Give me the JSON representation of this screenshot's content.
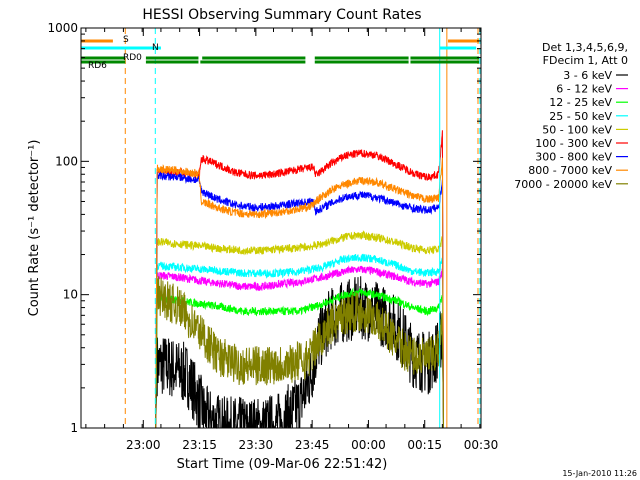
{
  "chart_data": {
    "type": "line",
    "title": "HESSI Observing Summary Count Rates",
    "xlabel": "Start Time (09-Mar-06 22:51:42)",
    "ylabel": "Count Rate (s⁻¹ detector⁻¹)",
    "y_scale": "log",
    "ylim": [
      1,
      1000
    ],
    "xlim_min": [
      -8.3,
      98.3
    ],
    "x_ticks": [
      {
        "t": 8.3,
        "label": "23:00"
      },
      {
        "t": 23.3,
        "label": "23:15"
      },
      {
        "t": 38.3,
        "label": "23:30"
      },
      {
        "t": 53.3,
        "label": "23:45"
      },
      {
        "t": 68.3,
        "label": "00:00"
      },
      {
        "t": 83.3,
        "label": "00:15"
      },
      {
        "t": 98.3,
        "label": "00:30"
      }
    ],
    "y_ticks": [
      {
        "v": 1,
        "label": "1"
      },
      {
        "v": 10,
        "label": "10"
      },
      {
        "v": 100,
        "label": "100"
      },
      {
        "v": 1000,
        "label": "1000"
      }
    ],
    "legend_header": [
      "Det 1,3,4,5,6,9,",
      "FDecim 1, Att 0"
    ],
    "legend_position": "right",
    "series": [
      {
        "name": "3 - 6 keV",
        "color": "#000000",
        "points": [
          [
            12,
            3.0
          ],
          [
            15,
            2.9
          ],
          [
            20,
            2.5
          ],
          [
            25,
            1.2
          ],
          [
            30,
            1.0
          ],
          [
            35,
            1.0
          ],
          [
            40,
            1.0
          ],
          [
            45,
            1.1
          ],
          [
            50,
            1.5
          ],
          [
            53,
            2.5
          ],
          [
            55,
            4.5
          ],
          [
            58,
            6.5
          ],
          [
            62,
            7.5
          ],
          [
            66,
            8.0
          ],
          [
            70,
            7.5
          ],
          [
            74,
            6.5
          ],
          [
            77,
            5.0
          ],
          [
            80,
            3.5
          ],
          [
            84,
            3.0
          ],
          [
            86,
            3.5
          ],
          [
            88,
            5.0
          ]
        ]
      },
      {
        "name": "6 - 12 keV",
        "color": "#ff00ff",
        "points": [
          [
            12,
            14.0
          ],
          [
            18,
            13.5
          ],
          [
            25,
            12.5
          ],
          [
            30,
            12.0
          ],
          [
            35,
            11.5
          ],
          [
            40,
            11.5
          ],
          [
            45,
            12.0
          ],
          [
            50,
            12.5
          ],
          [
            53,
            13.0
          ],
          [
            56,
            13.5
          ],
          [
            62,
            15.0
          ],
          [
            66,
            15.5
          ],
          [
            70,
            15.0
          ],
          [
            76,
            13.5
          ],
          [
            80,
            12.5
          ],
          [
            84,
            12.0
          ],
          [
            87,
            12.5
          ],
          [
            88,
            15.0
          ]
        ]
      },
      {
        "name": "12 - 25 keV",
        "color": "#00ff00",
        "points": [
          [
            12,
            9.5
          ],
          [
            18,
            9.0
          ],
          [
            24,
            8.5
          ],
          [
            30,
            8.0
          ],
          [
            35,
            7.5
          ],
          [
            40,
            7.5
          ],
          [
            45,
            7.5
          ],
          [
            50,
            7.5
          ],
          [
            53,
            8.0
          ],
          [
            56,
            8.5
          ],
          [
            62,
            10.0
          ],
          [
            66,
            10.5
          ],
          [
            70,
            10.0
          ],
          [
            76,
            9.0
          ],
          [
            80,
            8.0
          ],
          [
            84,
            7.5
          ],
          [
            87,
            8.0
          ],
          [
            88,
            10.0
          ]
        ]
      },
      {
        "name": "25 - 50 keV",
        "color": "#00ffff",
        "points": [
          [
            12,
            16.5
          ],
          [
            18,
            16.0
          ],
          [
            24,
            15.5
          ],
          [
            30,
            15.0
          ],
          [
            35,
            14.5
          ],
          [
            40,
            14.5
          ],
          [
            45,
            14.5
          ],
          [
            50,
            15.0
          ],
          [
            53,
            15.5
          ],
          [
            56,
            16.0
          ],
          [
            62,
            18.5
          ],
          [
            66,
            19.0
          ],
          [
            70,
            18.5
          ],
          [
            76,
            16.5
          ],
          [
            80,
            15.0
          ],
          [
            84,
            14.5
          ],
          [
            87,
            15.0
          ],
          [
            88,
            18.0
          ]
        ]
      },
      {
        "name": "50 - 100 keV",
        "color": "#cccc00",
        "points": [
          [
            12,
            25.0
          ],
          [
            18,
            24.0
          ],
          [
            24,
            23.0
          ],
          [
            30,
            22.0
          ],
          [
            35,
            21.5
          ],
          [
            40,
            21.5
          ],
          [
            45,
            22.0
          ],
          [
            50,
            22.5
          ],
          [
            53,
            23.0
          ],
          [
            56,
            24.0
          ],
          [
            62,
            27.0
          ],
          [
            66,
            28.0
          ],
          [
            70,
            27.0
          ],
          [
            76,
            24.5
          ],
          [
            80,
            22.5
          ],
          [
            84,
            21.5
          ],
          [
            87,
            22.0
          ],
          [
            88,
            26.0
          ]
        ]
      },
      {
        "name": "100 - 300 keV",
        "color": "#ff0000",
        "points": [
          [
            12,
            85.0
          ],
          [
            18,
            83.0
          ],
          [
            23.2,
            78.0
          ],
          [
            23.8,
            105.0
          ],
          [
            28,
            95.0
          ],
          [
            33,
            82.0
          ],
          [
            38,
            78.0
          ],
          [
            43,
            80.0
          ],
          [
            48,
            85.0
          ],
          [
            53,
            90.0
          ],
          [
            53.8,
            90.0
          ],
          [
            54.2,
            78.0
          ],
          [
            58,
            95.0
          ],
          [
            62,
            110.0
          ],
          [
            66,
            115.0
          ],
          [
            70,
            112.0
          ],
          [
            74,
            100.0
          ],
          [
            78,
            88.0
          ],
          [
            81,
            80.0
          ],
          [
            84,
            76.0
          ],
          [
            87,
            80.0
          ],
          [
            88,
            160.0
          ]
        ]
      },
      {
        "name": "300 - 800 keV",
        "color": "#0000ff",
        "points": [
          [
            12,
            78.0
          ],
          [
            18,
            76.0
          ],
          [
            23.2,
            72.0
          ],
          [
            23.8,
            60.0
          ],
          [
            28,
            52.0
          ],
          [
            33,
            47.0
          ],
          [
            38,
            45.0
          ],
          [
            43,
            46.0
          ],
          [
            48,
            48.0
          ],
          [
            53,
            50.0
          ],
          [
            53.8,
            50.0
          ],
          [
            54.2,
            42.0
          ],
          [
            58,
            48.0
          ],
          [
            62,
            54.0
          ],
          [
            66,
            56.0
          ],
          [
            70,
            54.0
          ],
          [
            74,
            50.0
          ],
          [
            78,
            46.0
          ],
          [
            81,
            44.0
          ],
          [
            84,
            43.0
          ],
          [
            87,
            45.0
          ],
          [
            88,
            70.0
          ]
        ]
      },
      {
        "name": "800 - 7000 keV",
        "color": "#ff8800",
        "points": [
          [
            12,
            88.0
          ],
          [
            18,
            85.0
          ],
          [
            23.2,
            80.0
          ],
          [
            23.8,
            50.0
          ],
          [
            28,
            45.0
          ],
          [
            33,
            41.0
          ],
          [
            38,
            40.0
          ],
          [
            43,
            41.0
          ],
          [
            48,
            43.0
          ],
          [
            53,
            46.0
          ],
          [
            56,
            55.0
          ],
          [
            60,
            64.0
          ],
          [
            64,
            70.0
          ],
          [
            67,
            72.0
          ],
          [
            70,
            70.0
          ],
          [
            74,
            64.0
          ],
          [
            78,
            58.0
          ],
          [
            81,
            54.0
          ],
          [
            84,
            52.0
          ],
          [
            87,
            53.0
          ],
          [
            88,
            100.0
          ]
        ]
      },
      {
        "name": "7000 - 20000 keV",
        "color": "#808000",
        "points": [
          [
            12,
            10.0
          ],
          [
            18,
            8.0
          ],
          [
            24,
            5.0
          ],
          [
            28,
            3.5
          ],
          [
            33,
            3.0
          ],
          [
            38,
            2.9
          ],
          [
            43,
            3.0
          ],
          [
            48,
            3.1
          ],
          [
            52,
            3.3
          ],
          [
            54,
            4.0
          ],
          [
            57,
            5.5
          ],
          [
            61,
            7.0
          ],
          [
            65,
            7.5
          ],
          [
            69,
            7.0
          ],
          [
            73,
            5.5
          ],
          [
            77,
            4.0
          ],
          [
            80,
            3.5
          ],
          [
            84,
            3.3
          ],
          [
            87,
            3.8
          ],
          [
            88,
            6.0
          ]
        ]
      }
    ],
    "flag_bars": [
      {
        "label": "S",
        "color": "#ff8800",
        "spans": [
          [
            -8.3,
            0.2
          ],
          [
            89.5,
            97.8
          ]
        ]
      },
      {
        "label": "N",
        "color": "#00ffff",
        "spans": [
          [
            -8.3,
            13.0
          ],
          [
            87.3,
            97.0
          ]
        ]
      },
      {
        "label": "RD0",
        "color": "#008800",
        "spans": [
          [
            -8.3,
            3.5
          ],
          [
            9.0,
            23.0
          ],
          [
            24.0,
            51.5
          ],
          [
            54.0,
            79.0
          ],
          [
            79.5,
            97.8
          ]
        ]
      },
      {
        "label": "RD6",
        "color": "#008800",
        "spans": [
          [
            -8.3,
            3.5
          ],
          [
            9.0,
            23.0
          ],
          [
            23.5,
            51.5
          ],
          [
            54.0,
            79.0
          ],
          [
            79.5,
            97.8
          ]
        ]
      }
    ],
    "vertical_markers": [
      {
        "t": -8.3,
        "color": "#00ffff",
        "style": "solid"
      },
      {
        "t": 3.5,
        "color": "#ff8800",
        "style": "dashed"
      },
      {
        "t": 11.5,
        "color": "#00ffff",
        "style": "dashed"
      },
      {
        "t": 87.3,
        "color": "#00ffff",
        "style": "solid"
      },
      {
        "t": 89.2,
        "color": "#ff8800",
        "style": "solid"
      },
      {
        "t": 97.5,
        "color": "#ff8800",
        "style": "dashed"
      },
      {
        "t": 98.0,
        "color": "#00ffff",
        "style": "dashed"
      }
    ]
  },
  "footer_timestamp": "15-Jan-2010 11:26"
}
